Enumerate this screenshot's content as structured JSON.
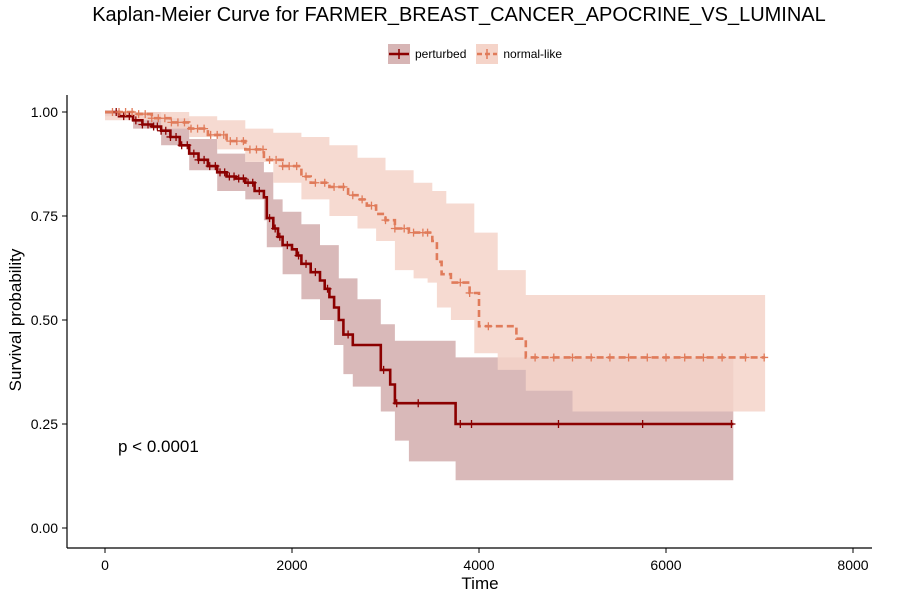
{
  "chart_data": {
    "type": "line",
    "title": "Kaplan-Meier Curve for FARMER_BREAST_CANCER_APOCRINE_VS_LUMINAL",
    "xlabel": "Time",
    "ylabel": "Survival probability",
    "xlim": [
      -200,
      8150
    ],
    "ylim": [
      -0.05,
      1.05
    ],
    "xticks": [
      0,
      2000,
      4000,
      6000,
      8000
    ],
    "xtick_labels": [
      "0",
      "2000",
      "4000",
      "6000",
      "8000"
    ],
    "yticks": [
      0,
      0.25,
      0.5,
      0.75,
      1.0
    ],
    "ytick_labels": [
      "0.00",
      "0.25",
      "0.50",
      "0.75",
      "1.00"
    ],
    "grid": false,
    "legend_position": "top",
    "annotation": "p < 0.0001",
    "series": [
      {
        "name": "perturbed",
        "color": "#8B0000",
        "band_color": "#D7B5B5",
        "line_style": "solid",
        "steps": [
          [
            0,
            1.0
          ],
          [
            150,
            0.99
          ],
          [
            300,
            0.98
          ],
          [
            400,
            0.97
          ],
          [
            500,
            0.965
          ],
          [
            600,
            0.955
          ],
          [
            700,
            0.94
          ],
          [
            800,
            0.92
          ],
          [
            900,
            0.9
          ],
          [
            1000,
            0.885
          ],
          [
            1100,
            0.87
          ],
          [
            1200,
            0.855
          ],
          [
            1300,
            0.845
          ],
          [
            1400,
            0.84
          ],
          [
            1500,
            0.83
          ],
          [
            1600,
            0.81
          ],
          [
            1700,
            0.795
          ],
          [
            1730,
            0.745
          ],
          [
            1800,
            0.72
          ],
          [
            1850,
            0.7
          ],
          [
            1900,
            0.68
          ],
          [
            2000,
            0.67
          ],
          [
            2050,
            0.655
          ],
          [
            2100,
            0.635
          ],
          [
            2200,
            0.615
          ],
          [
            2300,
            0.595
          ],
          [
            2350,
            0.575
          ],
          [
            2400,
            0.555
          ],
          [
            2450,
            0.53
          ],
          [
            2500,
            0.5
          ],
          [
            2550,
            0.465
          ],
          [
            2650,
            0.44
          ],
          [
            2950,
            0.38
          ],
          [
            3050,
            0.345
          ],
          [
            3100,
            0.3
          ],
          [
            3750,
            0.25
          ],
          [
            6720,
            0.25
          ]
        ],
        "ci_upper": [
          [
            0,
            1.0
          ],
          [
            300,
            1.0
          ],
          [
            600,
            0.985
          ],
          [
            900,
            0.935
          ],
          [
            1200,
            0.9
          ],
          [
            1500,
            0.88
          ],
          [
            1700,
            0.855
          ],
          [
            1800,
            0.79
          ],
          [
            1900,
            0.76
          ],
          [
            2100,
            0.73
          ],
          [
            2300,
            0.68
          ],
          [
            2500,
            0.6
          ],
          [
            2700,
            0.55
          ],
          [
            2950,
            0.49
          ],
          [
            3100,
            0.45
          ],
          [
            3750,
            0.41
          ],
          [
            6720,
            0.41
          ]
        ],
        "ci_lower": [
          [
            0,
            0.99
          ],
          [
            300,
            0.96
          ],
          [
            600,
            0.92
          ],
          [
            900,
            0.86
          ],
          [
            1200,
            0.81
          ],
          [
            1500,
            0.79
          ],
          [
            1700,
            0.74
          ],
          [
            1730,
            0.675
          ],
          [
            1900,
            0.61
          ],
          [
            2100,
            0.55
          ],
          [
            2300,
            0.5
          ],
          [
            2450,
            0.44
          ],
          [
            2550,
            0.37
          ],
          [
            2650,
            0.34
          ],
          [
            2950,
            0.28
          ],
          [
            3100,
            0.21
          ],
          [
            3250,
            0.16
          ],
          [
            3750,
            0.115
          ],
          [
            6720,
            0.115
          ]
        ],
        "censor_times": [
          120,
          200,
          260,
          330,
          400,
          460,
          520,
          560,
          600,
          650,
          700,
          760,
          820,
          880,
          950,
          1000,
          1060,
          1120,
          1180,
          1230,
          1280,
          1330,
          1380,
          1430,
          1480,
          1530,
          1580,
          1650,
          1760,
          1820,
          1870,
          1950,
          2070,
          2150,
          2250,
          2380,
          2600,
          2980,
          3120,
          3350,
          3800,
          3920,
          4850,
          5750,
          6700
        ]
      },
      {
        "name": "normal-like",
        "color": "#E07B5A",
        "band_color": "#F5D4C9",
        "line_style": "dashed",
        "steps": [
          [
            0,
            1.0
          ],
          [
            300,
            0.995
          ],
          [
            500,
            0.985
          ],
          [
            700,
            0.975
          ],
          [
            900,
            0.96
          ],
          [
            1100,
            0.945
          ],
          [
            1300,
            0.93
          ],
          [
            1500,
            0.91
          ],
          [
            1700,
            0.885
          ],
          [
            1900,
            0.87
          ],
          [
            2100,
            0.845
          ],
          [
            2200,
            0.83
          ],
          [
            2400,
            0.82
          ],
          [
            2600,
            0.8
          ],
          [
            2700,
            0.79
          ],
          [
            2800,
            0.775
          ],
          [
            2900,
            0.755
          ],
          [
            3000,
            0.74
          ],
          [
            3100,
            0.72
          ],
          [
            3250,
            0.71
          ],
          [
            3500,
            0.69
          ],
          [
            3550,
            0.64
          ],
          [
            3600,
            0.61
          ],
          [
            3700,
            0.59
          ],
          [
            3900,
            0.565
          ],
          [
            4000,
            0.485
          ],
          [
            4400,
            0.455
          ],
          [
            4500,
            0.41
          ],
          [
            7060,
            0.41
          ]
        ],
        "ci_upper": [
          [
            0,
            1.0
          ],
          [
            600,
            1.0
          ],
          [
            900,
            0.99
          ],
          [
            1200,
            0.98
          ],
          [
            1500,
            0.96
          ],
          [
            1800,
            0.95
          ],
          [
            2100,
            0.94
          ],
          [
            2400,
            0.92
          ],
          [
            2700,
            0.89
          ],
          [
            3000,
            0.86
          ],
          [
            3300,
            0.83
          ],
          [
            3500,
            0.81
          ],
          [
            3650,
            0.78
          ],
          [
            3950,
            0.71
          ],
          [
            4200,
            0.62
          ],
          [
            4500,
            0.56
          ],
          [
            7060,
            0.56
          ]
        ],
        "ci_lower": [
          [
            0,
            0.98
          ],
          [
            600,
            0.96
          ],
          [
            900,
            0.94
          ],
          [
            1200,
            0.91
          ],
          [
            1500,
            0.88
          ],
          [
            1800,
            0.83
          ],
          [
            2100,
            0.79
          ],
          [
            2400,
            0.75
          ],
          [
            2700,
            0.72
          ],
          [
            2900,
            0.69
          ],
          [
            3100,
            0.62
          ],
          [
            3300,
            0.6
          ],
          [
            3450,
            0.59
          ],
          [
            3550,
            0.53
          ],
          [
            3700,
            0.5
          ],
          [
            3950,
            0.42
          ],
          [
            4200,
            0.38
          ],
          [
            4500,
            0.33
          ],
          [
            5000,
            0.28
          ],
          [
            7060,
            0.255
          ]
        ],
        "censor_times": [
          80,
          150,
          220,
          290,
          360,
          430,
          500,
          570,
          640,
          710,
          780,
          850,
          920,
          990,
          1060,
          1130,
          1200,
          1270,
          1340,
          1410,
          1480,
          1550,
          1620,
          1690,
          1760,
          1830,
          1900,
          1970,
          2050,
          2150,
          2250,
          2350,
          2450,
          2550,
          2650,
          2750,
          2850,
          3000,
          3100,
          3200,
          3300,
          3400,
          3450,
          3800,
          3900,
          4100,
          4600,
          4800,
          5000,
          5200,
          5400,
          5600,
          5800,
          6000,
          6200,
          6400,
          6600,
          6850,
          7050
        ]
      }
    ]
  }
}
